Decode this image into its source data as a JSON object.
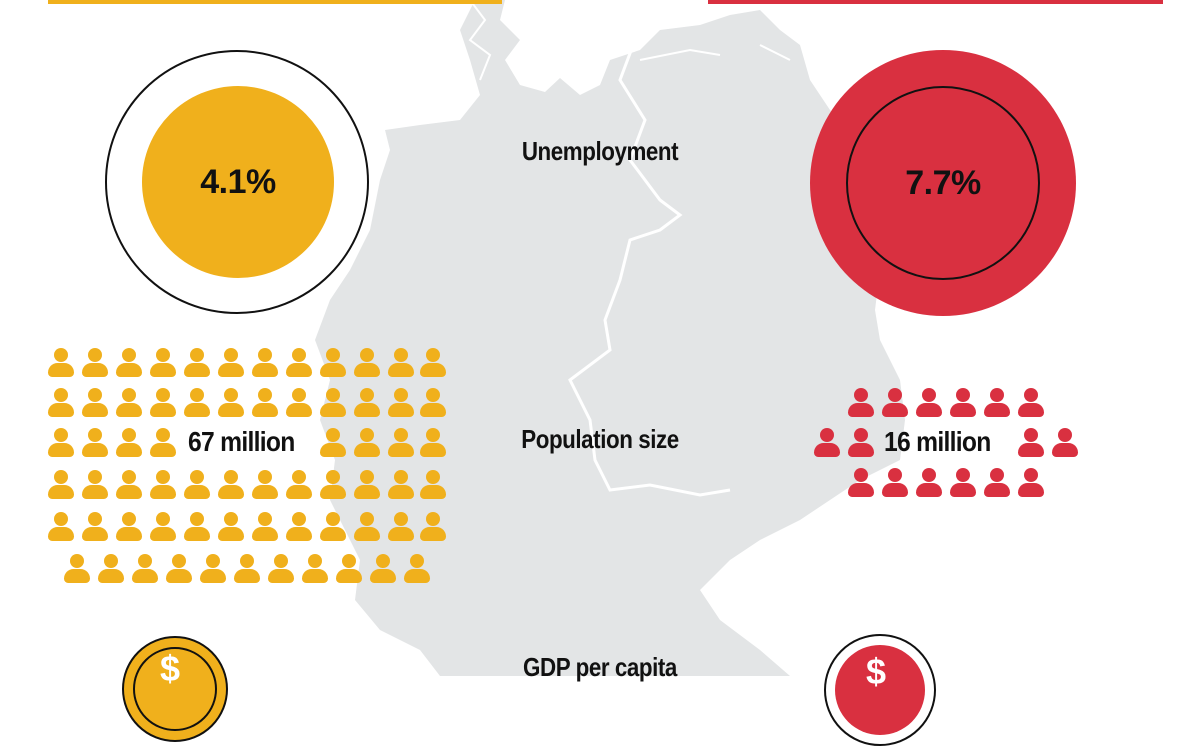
{
  "colors": {
    "west": "#f0b01c",
    "east": "#d93040",
    "map": "#e3e5e6",
    "map_border": "#ffffff",
    "text": "#111111"
  },
  "metrics": {
    "unemployment": {
      "label": "Unemployment",
      "west_value": "4.1%",
      "east_value": "7.7%"
    },
    "population": {
      "label": "Population size",
      "west_value": "67 million",
      "east_value": "16 million"
    },
    "gdp": {
      "label": "GDP per capita"
    }
  },
  "icons": {
    "person": "person-icon",
    "currency": "dollar-coin-icon"
  }
}
